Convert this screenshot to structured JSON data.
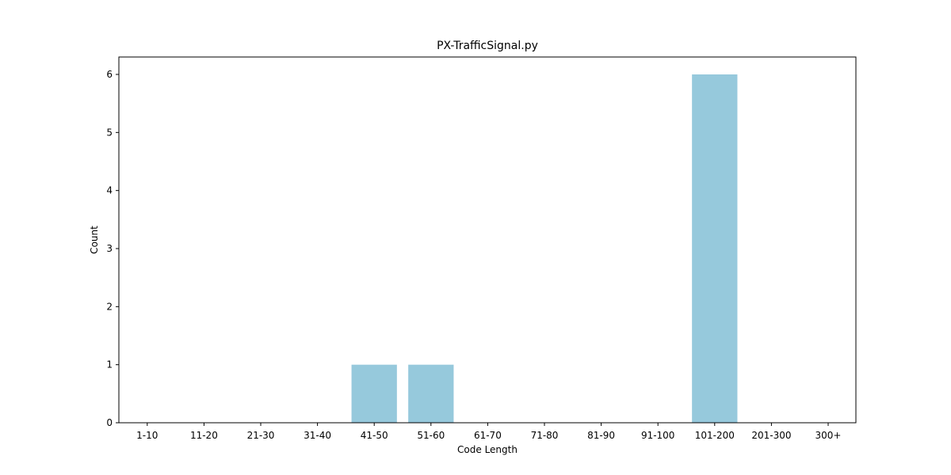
{
  "chart_data": {
    "type": "bar",
    "title": "PX-TrafficSignal.py",
    "xlabel": "Code Length",
    "ylabel": "Count",
    "categories": [
      "1-10",
      "11-20",
      "21-30",
      "31-40",
      "41-50",
      "51-60",
      "61-70",
      "71-80",
      "81-90",
      "91-100",
      "101-200",
      "201-300",
      "300+"
    ],
    "values": [
      0,
      0,
      0,
      0,
      1,
      1,
      0,
      0,
      0,
      0,
      6,
      0,
      0
    ],
    "ylim": [
      0,
      6.3
    ],
    "yticks": [
      0,
      1,
      2,
      3,
      4,
      5,
      6
    ],
    "grid": false,
    "bar_color": "#96c9dc"
  }
}
